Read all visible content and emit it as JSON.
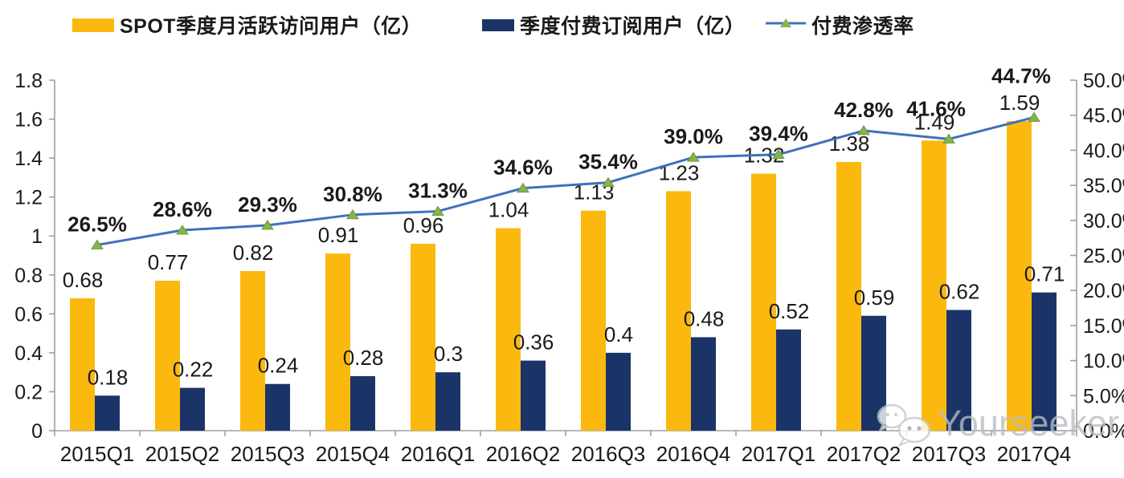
{
  "chart_data": {
    "type": "combo-bar-line",
    "categories": [
      "2015Q1",
      "2015Q2",
      "2015Q3",
      "2015Q4",
      "2016Q1",
      "2016Q2",
      "2016Q3",
      "2016Q4",
      "2017Q1",
      "2017Q2",
      "2017Q3",
      "2017Q4"
    ],
    "series": [
      {
        "name": "SPOT季度月活跃访问用户（亿）",
        "type": "bar",
        "axis": "left",
        "color": "#FBB90F",
        "values": [
          0.68,
          0.77,
          0.82,
          0.91,
          0.96,
          1.04,
          1.13,
          1.23,
          1.32,
          1.38,
          1.49,
          1.59
        ],
        "labels": [
          "0.68",
          "0.77",
          "0.82",
          "0.91",
          "0.96",
          "1.04",
          "1.13",
          "1.23",
          "1.32",
          "1.38",
          "1.49",
          "1.59"
        ]
      },
      {
        "name": "季度付费订阅用户（亿）",
        "type": "bar",
        "axis": "left",
        "color": "#1B3468",
        "values": [
          0.18,
          0.22,
          0.24,
          0.28,
          0.3,
          0.36,
          0.4,
          0.48,
          0.52,
          0.59,
          0.62,
          0.71
        ],
        "labels": [
          "0.18",
          "0.22",
          "0.24",
          "0.28",
          "0.3",
          "0.36",
          "0.4",
          "0.48",
          "0.52",
          "0.59",
          "0.62",
          "0.71"
        ]
      },
      {
        "name": "付费渗透率",
        "type": "line",
        "axis": "right",
        "color": "#4070BE",
        "marker": "triangle",
        "marker_color": "#85B44A",
        "values": [
          26.5,
          28.6,
          29.3,
          30.8,
          31.3,
          34.6,
          35.4,
          39.0,
          39.4,
          42.8,
          41.6,
          44.7
        ],
        "labels": [
          "26.5%",
          "28.6%",
          "29.3%",
          "30.8%",
          "31.3%",
          "34.6%",
          "35.4%",
          "39.0%",
          "39.4%",
          "42.8%",
          "41.6%",
          "44.7%"
        ]
      }
    ],
    "left_axis": {
      "min": 0,
      "max": 1.8,
      "ticks": [
        "1.8",
        "1.6",
        "1.4",
        "1.2",
        "1",
        "0.8",
        "0.6",
        "0.4",
        "0.2",
        "0"
      ]
    },
    "right_axis": {
      "min": 0,
      "max": 50,
      "ticks": [
        "50.0%",
        "45.0%",
        "40.0%",
        "35.0%",
        "30.0%",
        "25.0%",
        "20.0%",
        "15.0%",
        "10.0%",
        "5.0%",
        "0.0%"
      ]
    },
    "grid": false,
    "legend_position": "top",
    "axis_color": "#9FA0A2",
    "text_color": "#1a1a1a"
  },
  "watermark": {
    "text": "Yourseeker",
    "icon": "wechat-chat-bubbles",
    "color": "#b9bcbf"
  }
}
